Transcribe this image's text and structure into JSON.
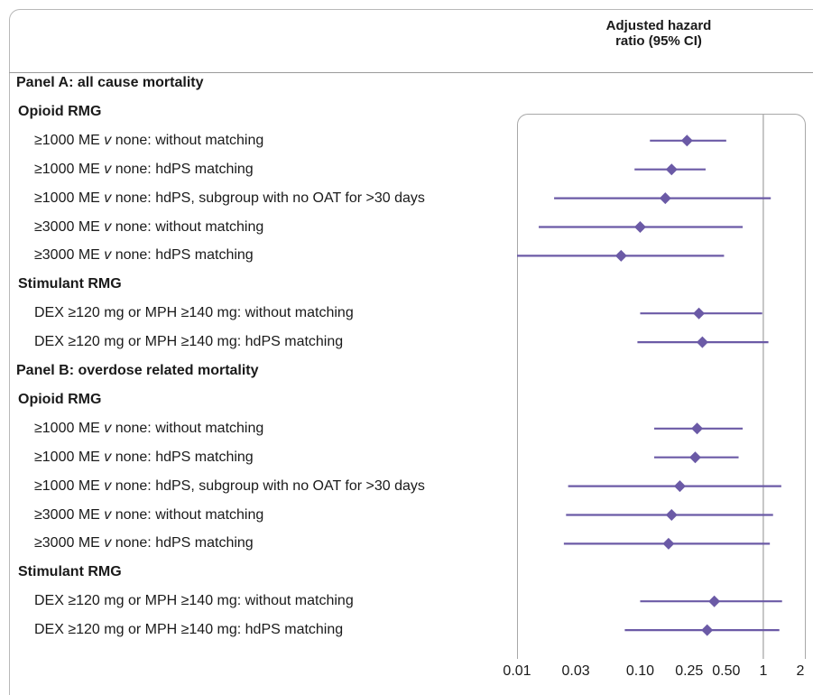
{
  "column_header": {
    "line1": "Adjusted hazard",
    "line2": "ratio (95% CI)"
  },
  "rows": [
    {
      "kind": "panel",
      "text": "Panel A: all cause mortality"
    },
    {
      "kind": "section",
      "text": "Opioid RMG"
    },
    {
      "kind": "item",
      "prefix": "≥1000 ME ",
      "v": "v",
      "suffix": " none: without matching"
    },
    {
      "kind": "item",
      "prefix": "≥1000 ME ",
      "v": "v",
      "suffix": " none: hdPS matching"
    },
    {
      "kind": "item",
      "prefix": "≥1000 ME ",
      "v": "v",
      "suffix": " none: hdPS, subgroup with no OAT for >30 days"
    },
    {
      "kind": "item",
      "prefix": "≥3000 ME ",
      "v": "v",
      "suffix": " none: without matching"
    },
    {
      "kind": "item",
      "prefix": "≥3000 ME ",
      "v": "v",
      "suffix": " none: hdPS matching"
    },
    {
      "kind": "section",
      "text": "Stimulant RMG"
    },
    {
      "kind": "item",
      "prefix": "DEX ≥120 mg or MPH ≥140 mg: without matching",
      "v": "",
      "suffix": ""
    },
    {
      "kind": "item",
      "prefix": "DEX ≥120 mg or MPH ≥140 mg: hdPS matching",
      "v": "",
      "suffix": ""
    },
    {
      "kind": "panel",
      "text": "Panel B: overdose related mortality"
    },
    {
      "kind": "section",
      "text": "Opioid RMG"
    },
    {
      "kind": "item",
      "prefix": "≥1000 ME ",
      "v": "v",
      "suffix": " none: without matching"
    },
    {
      "kind": "item",
      "prefix": "≥1000 ME ",
      "v": "v",
      "suffix": " none: hdPS matching"
    },
    {
      "kind": "item",
      "prefix": "≥1000 ME ",
      "v": "v",
      "suffix": " none: hdPS, subgroup with no OAT for >30 days"
    },
    {
      "kind": "item",
      "prefix": "≥3000 ME ",
      "v": "v",
      "suffix": " none: without matching"
    },
    {
      "kind": "item",
      "prefix": "≥3000 ME ",
      "v": "v",
      "suffix": " none: hdPS matching"
    },
    {
      "kind": "section",
      "text": "Stimulant RMG"
    },
    {
      "kind": "item",
      "prefix": "DEX ≥120 mg or MPH ≥140 mg: without matching",
      "v": "",
      "suffix": ""
    },
    {
      "kind": "item",
      "prefix": "DEX ≥120 mg or MPH ≥140 mg: hdPS matching",
      "v": "",
      "suffix": ""
    }
  ],
  "chart_data": {
    "type": "forest",
    "title": "",
    "xlabel": "Adjusted hazard ratio (95% CI)",
    "x_scale": "log",
    "xlim": [
      0.01,
      2
    ],
    "xticks": [
      0.01,
      0.03,
      0.1,
      0.25,
      0.5,
      1,
      2
    ],
    "xtick_labels": [
      "0.01",
      "0.03",
      "0.10",
      "0.25",
      "0.50",
      "1",
      "2"
    ],
    "reference_line": 1,
    "marker_color": "#6b5aa6",
    "axis_color": "#a8a8a8",
    "series": [
      {
        "row": 2,
        "hr": 0.24,
        "lo": 0.12,
        "hi": 0.5
      },
      {
        "row": 3,
        "hr": 0.18,
        "lo": 0.09,
        "hi": 0.34
      },
      {
        "row": 4,
        "hr": 0.16,
        "lo": 0.02,
        "hi": 1.15
      },
      {
        "row": 5,
        "hr": 0.1,
        "lo": 0.015,
        "hi": 0.68
      },
      {
        "row": 6,
        "hr": 0.07,
        "lo": 0.01,
        "hi": 0.48
      },
      {
        "row": 8,
        "hr": 0.3,
        "lo": 0.1,
        "hi": 0.98
      },
      {
        "row": 9,
        "hr": 0.32,
        "lo": 0.095,
        "hi": 1.1
      },
      {
        "row": 12,
        "hr": 0.29,
        "lo": 0.13,
        "hi": 0.68
      },
      {
        "row": 13,
        "hr": 0.28,
        "lo": 0.13,
        "hi": 0.63
      },
      {
        "row": 14,
        "hr": 0.21,
        "lo": 0.026,
        "hi": 1.4
      },
      {
        "row": 15,
        "hr": 0.18,
        "lo": 0.025,
        "hi": 1.2
      },
      {
        "row": 16,
        "hr": 0.17,
        "lo": 0.024,
        "hi": 1.13
      },
      {
        "row": 18,
        "hr": 0.4,
        "lo": 0.1,
        "hi": 1.42
      },
      {
        "row": 19,
        "hr": 0.35,
        "lo": 0.075,
        "hi": 1.35
      }
    ]
  }
}
